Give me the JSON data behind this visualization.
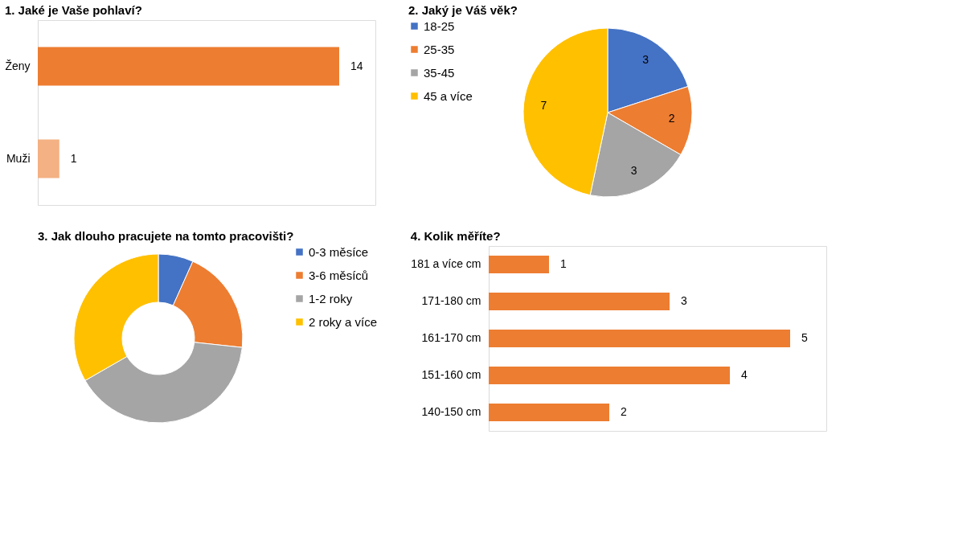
{
  "chart_data": [
    {
      "type": "bar",
      "orientation": "horizontal",
      "title": "1. Jaké je Vaše pohlaví?",
      "categories": [
        "Ženy",
        "Muži"
      ],
      "values": [
        14,
        1
      ],
      "colors": [
        "#ed7d31",
        "#f4b183"
      ],
      "data_labels": true,
      "grid": false,
      "legend": false
    },
    {
      "type": "pie",
      "title": "2. Jaký je Váš věk?",
      "categories": [
        "18-25",
        "25-35",
        "35-45",
        "45 a více"
      ],
      "values": [
        3,
        2,
        3,
        7
      ],
      "colors": [
        "#4472c4",
        "#ed7d31",
        "#a5a5a5",
        "#ffc000"
      ],
      "data_labels": true,
      "legend": "left"
    },
    {
      "type": "donut",
      "title": "3. Jak dlouho pracujete na tomto pracovišti?",
      "categories": [
        "0-3 měsíce",
        "3-6 měsíců",
        "1-2 roky",
        "2 roky a více"
      ],
      "values": [
        6.7,
        20,
        40,
        33.3
      ],
      "colors": [
        "#4472c4",
        "#ed7d31",
        "#a5a5a5",
        "#ffc000"
      ],
      "legend": "right"
    },
    {
      "type": "bar",
      "orientation": "horizontal",
      "title": "4. Kolik měříte?",
      "categories": [
        "181 a více cm",
        "171-180 cm",
        "161-170 cm",
        "151-160 cm",
        "140-150 cm"
      ],
      "values": [
        1,
        3,
        5,
        4,
        2
      ],
      "colors": [
        "#ed7d31",
        "#ed7d31",
        "#ed7d31",
        "#ed7d31",
        "#ed7d31"
      ],
      "data_labels": true,
      "grid": false,
      "legend": false
    }
  ]
}
